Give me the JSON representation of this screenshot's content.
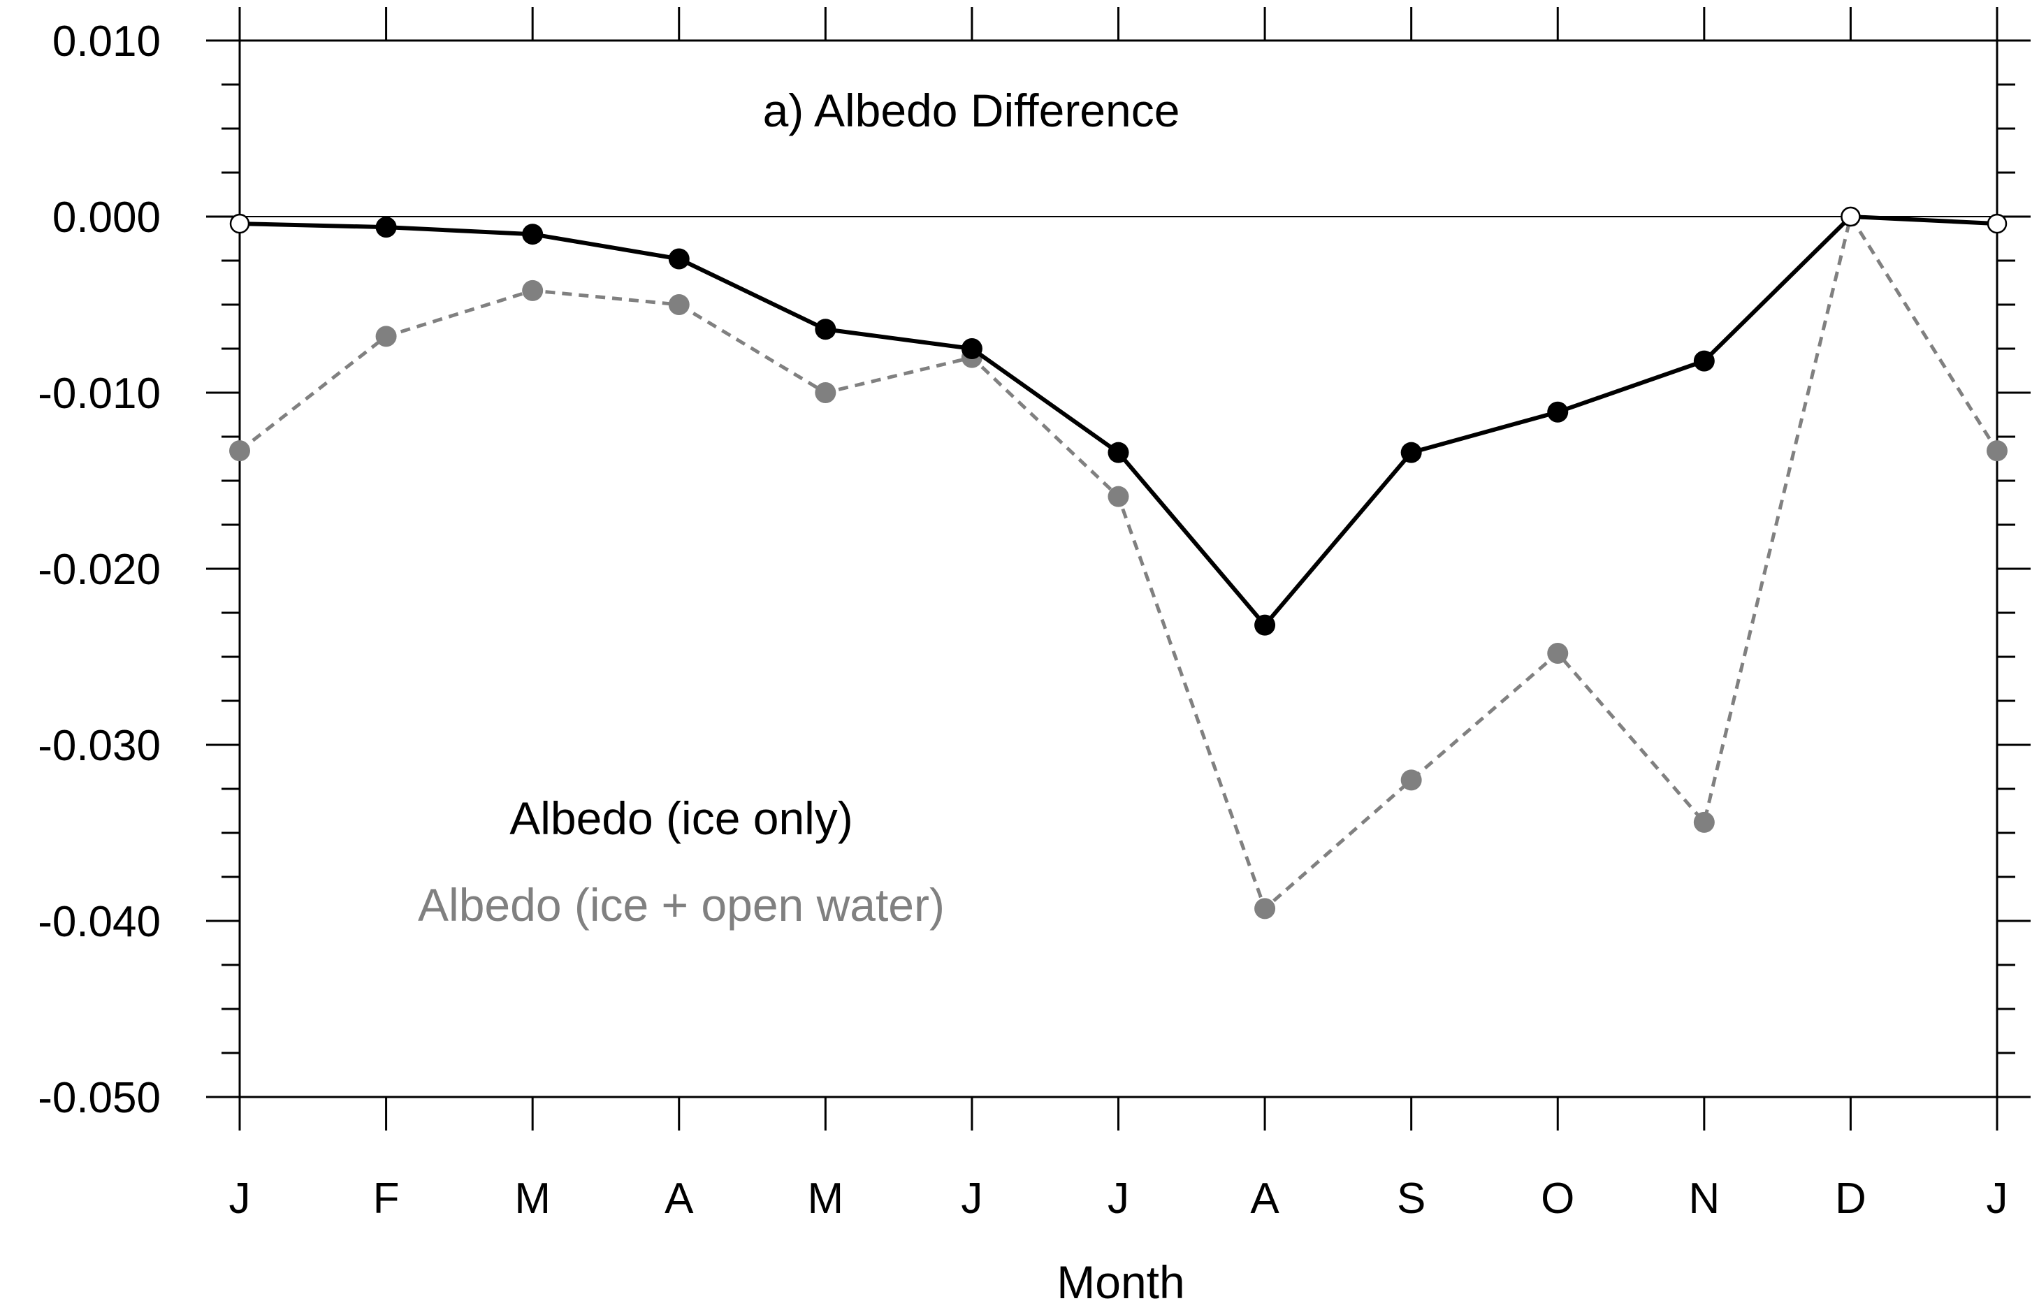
{
  "chart_data": {
    "type": "line",
    "title": "a) Albedo Difference",
    "xlabel": "Month",
    "ylabel": "",
    "categories": [
      "J",
      "F",
      "M",
      "A",
      "M",
      "J",
      "J",
      "A",
      "S",
      "O",
      "N",
      "D",
      "J"
    ],
    "ylim": [
      -0.05,
      0.01
    ],
    "yticks": [
      0.01,
      0.0,
      -0.01,
      -0.02,
      -0.03,
      -0.04,
      -0.05
    ],
    "ytick_labels": [
      "0.010",
      "0.000",
      "-0.010",
      "-0.020",
      "-0.030",
      "-0.040",
      "-0.050"
    ],
    "reference_line": 0.0,
    "grid": false,
    "legend_position": "lower-left",
    "series": [
      {
        "name": "Albedo (ice only)",
        "color": "#000000",
        "line_style": "solid",
        "values": [
          -0.0004,
          -0.0006,
          -0.001,
          -0.0024,
          -0.0064,
          -0.0075,
          -0.0134,
          -0.0232,
          -0.0134,
          -0.0111,
          -0.0082,
          0.0,
          -0.0004
        ],
        "open_markers": [
          0,
          11,
          12
        ]
      },
      {
        "name": "Albedo (ice + open water)",
        "color": "#808080",
        "line_style": "dashed",
        "values": [
          -0.0133,
          -0.0068,
          -0.0042,
          -0.005,
          -0.01,
          -0.008,
          -0.0159,
          -0.0393,
          -0.032,
          -0.0248,
          -0.0344,
          0.0,
          -0.0133
        ],
        "open_markers": [
          11
        ]
      }
    ]
  }
}
